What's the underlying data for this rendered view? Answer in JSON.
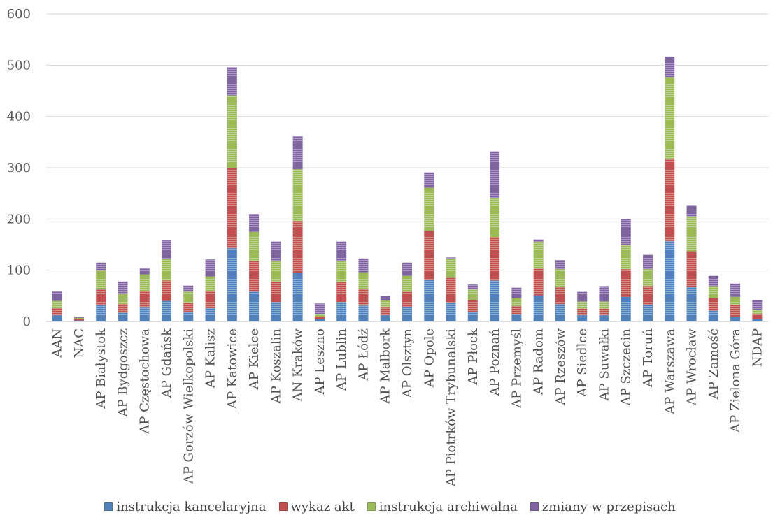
{
  "chart_data": {
    "type": "bar",
    "stacked": true,
    "title": "",
    "xlabel": "",
    "ylabel": "",
    "ylim": [
      0,
      600
    ],
    "yticks": [
      0,
      100,
      200,
      300,
      400,
      500,
      600
    ],
    "grid": "horizontal",
    "legend_position": "bottom",
    "categories": [
      "AAN",
      "NAC",
      "AP Białystok",
      "AP Bydgoszcz",
      "AP Częstochowa",
      "AP Gdańsk",
      "AP Gorzów Wielkopolski",
      "AP Kalisz",
      "AP Katowice",
      "AP Kielce",
      "AP Koszalin",
      "AN Kraków",
      "AP Leszno",
      "AP Lublin",
      "AP Łódź",
      "AP Malbork",
      "AP Olsztyn",
      "AP Opole",
      "AP Piotrków Trybunalski",
      "AP Płock",
      "AP Poznań",
      "AP Przemyśl",
      "AP Radom",
      "AP Rzeszów",
      "AP Siedlce",
      "AP Suwałki",
      "AP Szczecin",
      "AP Toruń",
      "AP Warszawa",
      "AP Wrocław",
      "AP Zamość",
      "AP Zielona Góra",
      "NDAP"
    ],
    "series": [
      {
        "name": "instrukcja kancelaryjna",
        "color": "#4f81bd",
        "values": [
          12,
          2,
          32,
          17,
          27,
          40,
          18,
          26,
          143,
          58,
          38,
          95,
          5,
          38,
          31,
          12,
          28,
          82,
          37,
          19,
          80,
          14,
          51,
          34,
          12,
          12,
          48,
          33,
          157,
          67,
          21,
          9,
          5
        ]
      },
      {
        "name": "wykaz akt",
        "color": "#c0504d",
        "values": [
          14,
          3,
          32,
          17,
          32,
          40,
          18,
          34,
          157,
          60,
          40,
          101,
          5,
          39,
          32,
          15,
          30,
          95,
          48,
          22,
          85,
          16,
          52,
          34,
          13,
          13,
          54,
          36,
          161,
          70,
          25,
          24,
          10
        ]
      },
      {
        "name": "instrukcja archiwalna",
        "color": "#9bbb59",
        "values": [
          14,
          2,
          35,
          19,
          33,
          42,
          22,
          28,
          141,
          57,
          40,
          101,
          5,
          41,
          33,
          14,
          31,
          84,
          38,
          22,
          76,
          15,
          51,
          34,
          14,
          14,
          47,
          33,
          159,
          68,
          23,
          15,
          8
        ]
      },
      {
        "name": "zmiany w przepisach",
        "color": "#8064a2",
        "values": [
          19,
          2,
          16,
          25,
          12,
          36,
          12,
          33,
          55,
          35,
          38,
          65,
          20,
          38,
          27,
          9,
          26,
          30,
          2,
          9,
          91,
          21,
          6,
          18,
          19,
          30,
          51,
          28,
          40,
          21,
          20,
          26,
          19
        ]
      }
    ]
  }
}
